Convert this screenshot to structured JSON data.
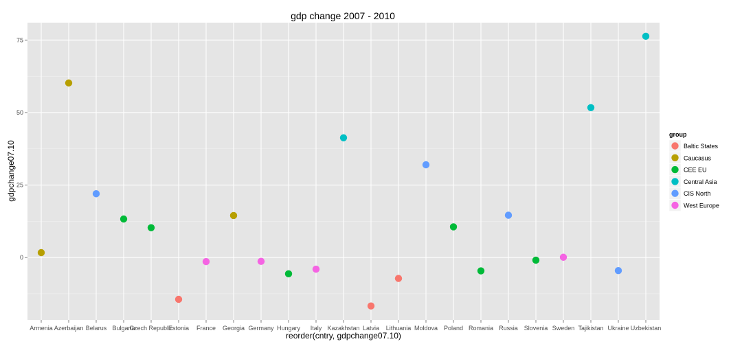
{
  "chart_data": {
    "type": "scatter",
    "title": "gdp change 2007 - 2010",
    "xlabel": "reorder(cntry, gdpchange07.10)",
    "ylabel": "gdpchange07.10",
    "ylim": [
      -21.5,
      81
    ],
    "yticks": [
      0,
      25,
      50,
      75
    ],
    "ytick_labels": [
      "0",
      "25",
      "50",
      "75"
    ],
    "grid": true,
    "legend": {
      "title": "group",
      "position": "right",
      "entries": [
        {
          "name": "Baltic States",
          "color": "#F8766D"
        },
        {
          "name": "Caucasus",
          "color": "#B79F00"
        },
        {
          "name": "CEE EU",
          "color": "#00BA38"
        },
        {
          "name": "Central Asia",
          "color": "#00BFC4"
        },
        {
          "name": "CIS North",
          "color": "#619CFF"
        },
        {
          "name": "West Europe",
          "color": "#F564E3"
        }
      ]
    },
    "points": [
      {
        "x": "Armenia",
        "y": 1.7,
        "group": "Caucasus"
      },
      {
        "x": "Azerbaijan",
        "y": 60.2,
        "group": "Caucasus"
      },
      {
        "x": "Belarus",
        "y": 22.0,
        "group": "CIS North"
      },
      {
        "x": "Bulgaria",
        "y": 13.3,
        "group": "CEE EU"
      },
      {
        "x": "Czech Republic",
        "y": 10.3,
        "group": "CEE EU"
      },
      {
        "x": "Estonia",
        "y": -14.4,
        "group": "Baltic States"
      },
      {
        "x": "France",
        "y": -1.4,
        "group": "West Europe"
      },
      {
        "x": "Georgia",
        "y": 14.5,
        "group": "Caucasus"
      },
      {
        "x": "Germany",
        "y": -1.3,
        "group": "West Europe"
      },
      {
        "x": "Hungary",
        "y": -5.6,
        "group": "CEE EU"
      },
      {
        "x": "Italy",
        "y": -4.0,
        "group": "West Europe"
      },
      {
        "x": "Kazakhstan",
        "y": 41.3,
        "group": "Central Asia"
      },
      {
        "x": "Latvia",
        "y": -16.7,
        "group": "Baltic States"
      },
      {
        "x": "Lithuania",
        "y": -7.2,
        "group": "Baltic States"
      },
      {
        "x": "Moldova",
        "y": 32.0,
        "group": "CIS North"
      },
      {
        "x": "Poland",
        "y": 10.6,
        "group": "CEE EU"
      },
      {
        "x": "Romania",
        "y": -4.6,
        "group": "CEE EU"
      },
      {
        "x": "Russia",
        "y": 14.6,
        "group": "CIS North"
      },
      {
        "x": "Slovenia",
        "y": -0.9,
        "group": "CEE EU"
      },
      {
        "x": "Sweden",
        "y": 0.1,
        "group": "West Europe"
      },
      {
        "x": "Tajikistan",
        "y": 51.7,
        "group": "Central Asia"
      },
      {
        "x": "Ukraine",
        "y": -4.5,
        "group": "CIS North"
      },
      {
        "x": "Uzbekistan",
        "y": 76.3,
        "group": "Central Asia"
      }
    ]
  }
}
